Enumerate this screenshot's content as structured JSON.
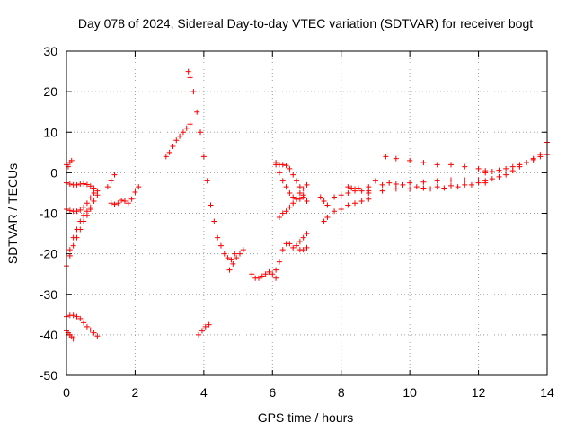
{
  "chart_data": {
    "type": "scatter",
    "title": "Day 078 of 2024, Sidereal Day-to-day VTEC variation (SDTVAR) for receiver bogt",
    "xlabel": "GPS time / hours",
    "ylabel": "SDTVAR / TECUs",
    "xlim": [
      0,
      14
    ],
    "ylim": [
      -50,
      30
    ],
    "xticks": [
      0,
      2,
      4,
      6,
      8,
      10,
      12,
      14
    ],
    "yticks": [
      -50,
      -40,
      -30,
      -20,
      -10,
      0,
      10,
      20,
      30
    ],
    "grid": true,
    "marker": "+",
    "color": "#ff0000",
    "series": [
      {
        "name": "s01",
        "x": [
          0.0,
          0.05,
          0.1,
          0.15
        ],
        "y": [
          2,
          1.5,
          2.5,
          3
        ]
      },
      {
        "name": "s02",
        "x": [
          0.0,
          0.1,
          0.2,
          0.3,
          0.4,
          0.5,
          0.6,
          0.7,
          0.8,
          0.9
        ],
        "y": [
          -2.5,
          -2.8,
          -3,
          -3,
          -2.8,
          -2.7,
          -2.9,
          -3.3,
          -3.8,
          -4.5
        ]
      },
      {
        "name": "s03",
        "x": [
          0.0,
          0.1,
          0.2,
          0.3,
          0.4,
          0.5,
          0.6,
          0.7,
          0.8
        ],
        "y": [
          -9,
          -9.3,
          -9.5,
          -9.5,
          -9.2,
          -8.5,
          -7.5,
          -6.2,
          -5
        ]
      },
      {
        "name": "s04",
        "x": [
          0.0,
          0.1,
          0.2,
          0.3,
          0.4,
          0.5,
          0.6,
          0.7
        ],
        "y": [
          -23,
          -19,
          -16,
          -14,
          -12,
          -10.5,
          -9.5,
          -8.5
        ]
      },
      {
        "name": "s05",
        "x": [
          0.1,
          0.2,
          0.3,
          0.4,
          0.5,
          0.6,
          0.7,
          0.8,
          0.9
        ],
        "y": [
          -20.5,
          -18,
          -16,
          -14,
          -12,
          -10.5,
          -9,
          -7,
          -5.5
        ]
      },
      {
        "name": "s06",
        "x": [
          0.0,
          0.1,
          0.2,
          0.3,
          0.4,
          0.5,
          0.6,
          0.7,
          0.8,
          0.9
        ],
        "y": [
          -35.5,
          -35.2,
          -35.2,
          -35.5,
          -36,
          -37,
          -38,
          -38.8,
          -39.5,
          -40.3
        ]
      },
      {
        "name": "s07",
        "x": [
          0.0,
          0.05,
          0.1,
          0.15,
          0.2
        ],
        "y": [
          -39,
          -39.5,
          -40,
          -40.5,
          -41
        ]
      },
      {
        "name": "s08",
        "x": [
          1.2,
          1.3,
          1.4
        ],
        "y": [
          -3.5,
          -2,
          -0.5
        ]
      },
      {
        "name": "s09",
        "x": [
          1.3,
          1.4,
          1.5,
          1.6,
          1.7,
          1.8,
          1.9,
          2.0,
          2.1
        ],
        "y": [
          -7.5,
          -7.8,
          -7.5,
          -6.8,
          -7,
          -7.5,
          -6.5,
          -4.8,
          -3.5
        ]
      },
      {
        "name": "s10",
        "x": [
          2.9,
          3.0,
          3.1,
          3.2,
          3.3,
          3.4,
          3.5,
          3.6
        ],
        "y": [
          4,
          5,
          6.5,
          8,
          9,
          10,
          11,
          12
        ]
      },
      {
        "name": "s11",
        "x": [
          3.55,
          3.6,
          3.7,
          3.8,
          3.9,
          4.0,
          4.1,
          4.2,
          4.3,
          4.4,
          4.5,
          4.6,
          4.7,
          4.8,
          4.9
        ],
        "y": [
          25,
          23.5,
          20,
          15,
          10,
          4,
          -2,
          -8,
          -12,
          -16,
          -18,
          -20,
          -21,
          -21.5,
          -20
        ]
      },
      {
        "name": "s12",
        "x": [
          3.85,
          3.95,
          4.05,
          4.15
        ],
        "y": [
          -40,
          -39,
          -38,
          -37.5
        ]
      },
      {
        "name": "s13",
        "x": [
          4.75,
          4.85,
          4.95,
          5.05,
          5.15
        ],
        "y": [
          -24,
          -22.5,
          -21,
          -20,
          -19
        ]
      },
      {
        "name": "s14",
        "x": [
          5.4,
          5.5,
          5.6,
          5.7,
          5.8,
          5.9,
          6.0,
          6.1
        ],
        "y": [
          -25,
          -26,
          -26,
          -25.5,
          -25,
          -24.5,
          -25,
          -26
        ]
      },
      {
        "name": "s15",
        "x": [
          6.1,
          6.2,
          6.3,
          6.4,
          6.5,
          6.6,
          6.7,
          6.8,
          6.9,
          7.0
        ],
        "y": [
          -24,
          -22,
          -19,
          -17.5,
          -17.5,
          -18.5,
          -18,
          -17,
          -16,
          -15
        ]
      },
      {
        "name": "s16",
        "x": [
          6.1,
          6.2,
          6.3,
          6.4,
          6.5,
          6.6,
          6.7,
          6.8,
          6.9,
          7.0
        ],
        "y": [
          2.5,
          2,
          2,
          1.8,
          1,
          -0.5,
          -2,
          -3.5,
          -5.5,
          -7
        ]
      },
      {
        "name": "s17",
        "x": [
          6.1,
          6.2,
          6.3,
          6.4,
          6.5,
          6.6,
          6.7,
          6.8,
          6.9
        ],
        "y": [
          2,
          0,
          -2,
          -3.5,
          -5,
          -6,
          -6.5,
          -6.5,
          -6
        ]
      },
      {
        "name": "s18",
        "x": [
          6.2,
          6.3,
          6.4,
          6.5,
          6.6,
          6.7,
          6.8,
          6.9,
          7.0
        ],
        "y": [
          -11,
          -10,
          -9.5,
          -8.5,
          -7.5,
          -6.5,
          -5,
          -4,
          -3
        ]
      },
      {
        "name": "s19",
        "x": [
          6.8,
          6.9,
          7.0
        ],
        "y": [
          -19,
          -19,
          -18.5
        ]
      },
      {
        "name": "s20",
        "x": [
          7.4,
          7.5,
          7.6
        ],
        "y": [
          -6,
          -7,
          -8
        ]
      },
      {
        "name": "s21",
        "x": [
          7.5,
          7.6
        ],
        "y": [
          -12,
          -11
        ]
      },
      {
        "name": "s22",
        "x": [
          7.8,
          8.0,
          8.2,
          8.4,
          8.6,
          8.8
        ],
        "y": [
          -9.5,
          -9,
          -8,
          -7.5,
          -7,
          -6.5
        ]
      },
      {
        "name": "s23",
        "x": [
          7.8,
          8.0,
          8.2,
          8.4,
          8.6,
          8.8
        ],
        "y": [
          -6,
          -5.5,
          -5,
          -4.5,
          -4.5,
          -4.5
        ]
      },
      {
        "name": "s24",
        "x": [
          8.2,
          8.3,
          8.4,
          8.5
        ],
        "y": [
          -3.5,
          -3.8,
          -4,
          -3.8
        ]
      },
      {
        "name": "s25",
        "x": [
          8.8,
          9.2,
          9.6,
          10.0,
          10.4,
          10.8,
          11.2,
          11.6,
          12.0
        ],
        "y": [
          -5,
          -4.5,
          -4,
          -4,
          -3.8,
          -3.5,
          -3.2,
          -3,
          -2.5
        ]
      },
      {
        "name": "s26",
        "x": [
          8.8,
          9.2,
          9.6,
          10.0,
          10.4,
          10.8,
          11.2,
          11.6,
          12.0
        ],
        "y": [
          -3.5,
          -3,
          -2.8,
          -2.5,
          -2.3,
          -2,
          -1.8,
          -1.8,
          -1.8
        ]
      },
      {
        "name": "s27",
        "x": [
          9.0,
          9.4,
          9.8,
          10.2,
          10.6,
          11.0,
          11.4,
          11.8,
          12.2
        ],
        "y": [
          -2,
          -2.5,
          -3,
          -3.5,
          -4,
          -3.8,
          -3.5,
          -3,
          -2.5
        ]
      },
      {
        "name": "s28",
        "x": [
          9.3,
          9.6,
          10.0,
          10.4,
          10.8,
          11.2,
          11.6,
          12.0,
          12.2
        ],
        "y": [
          4,
          3.5,
          3,
          2.5,
          2,
          2,
          1.5,
          1,
          0.5
        ]
      },
      {
        "name": "s29",
        "x": [
          12.2,
          12.4,
          12.6,
          12.8,
          13.0,
          13.2,
          13.4,
          13.6,
          13.8,
          14.0
        ],
        "y": [
          0,
          0.3,
          0.6,
          1,
          1.5,
          2,
          2.5,
          3.2,
          4,
          4.5
        ]
      },
      {
        "name": "s30",
        "x": [
          12.2,
          12.4,
          12.6,
          12.8,
          13.0,
          13.2,
          13.4,
          13.6,
          13.8,
          14.0
        ],
        "y": [
          -2,
          -1.5,
          -1,
          -0.5,
          0.5,
          1.5,
          2.5,
          3.5,
          4.5,
          7.5
        ]
      }
    ]
  }
}
